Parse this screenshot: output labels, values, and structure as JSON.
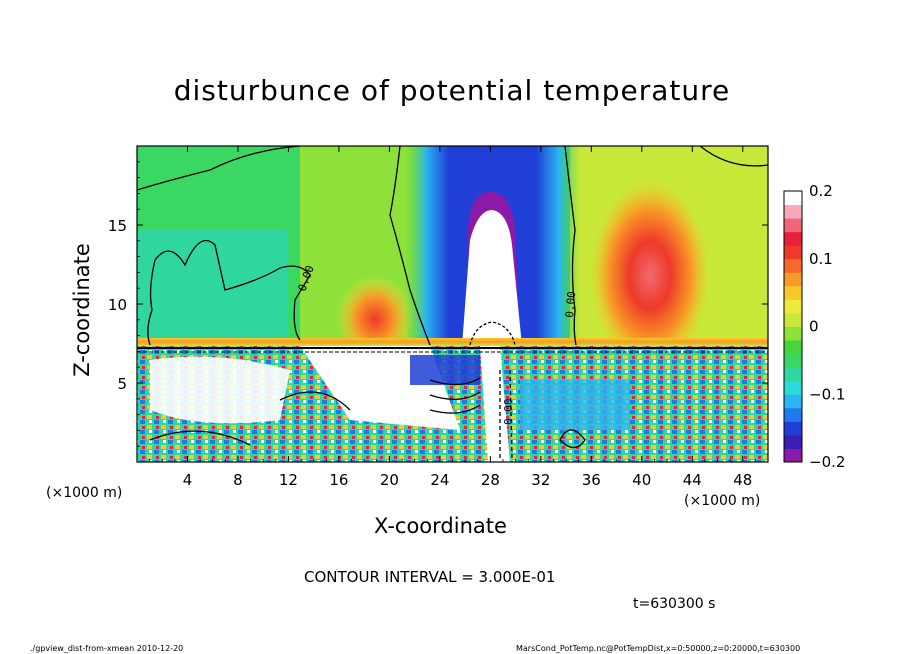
{
  "chart_data": {
    "type": "heatmap",
    "title": "disturbunce of potential temperature",
    "xlabel": "X-coordinate",
    "ylabel": "Z-coordinate",
    "x_unit_left": "(×1000 m)",
    "x_unit_right": "(×1000 m)",
    "xlim": [
      0,
      50
    ],
    "ylim": [
      0,
      20
    ],
    "x_ticks": [
      4,
      8,
      12,
      16,
      20,
      24,
      28,
      32,
      36,
      40,
      44,
      48
    ],
    "y_ticks": [
      5,
      10,
      15
    ],
    "colorbar": {
      "range": [
        -0.2,
        0.2
      ],
      "ticks": [
        "0.2",
        "0.1",
        "0",
        "−0.1",
        "−0.2"
      ],
      "colors": [
        "#8c1aa8",
        "#3a1fb3",
        "#1f3fd6",
        "#1f78ee",
        "#2bb5f2",
        "#29dcd8",
        "#2fd6a0",
        "#3ad862",
        "#46d63c",
        "#8ee03a",
        "#c8e83a",
        "#f0e83a",
        "#f8c82a",
        "#f89a26",
        "#f56a26",
        "#ee3a2a",
        "#e8203a",
        "#f06878",
        "#f8a8b8",
        "#ffffff"
      ]
    },
    "contour_interval": "CONTOUR INTERVAL = 3.000E-01",
    "contour_labels": [
      "0.00",
      "0.00",
      "0.00"
    ],
    "time": "t=630300 s"
  },
  "footer": {
    "left": "./gpview_dist-from-xmean  2010-12-20",
    "right": "MarsCond_PotTemp.nc@PotTempDist,x=0:50000,z=0:20000,t=630300"
  }
}
